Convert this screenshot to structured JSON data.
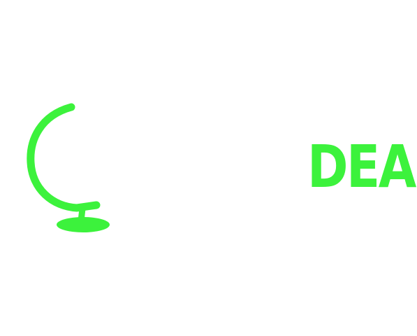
{
  "logo": {
    "icon": "globe-stand-icon",
    "text": "DEA",
    "accent_color": "#3cf23c",
    "background_color": "#ffffff"
  }
}
